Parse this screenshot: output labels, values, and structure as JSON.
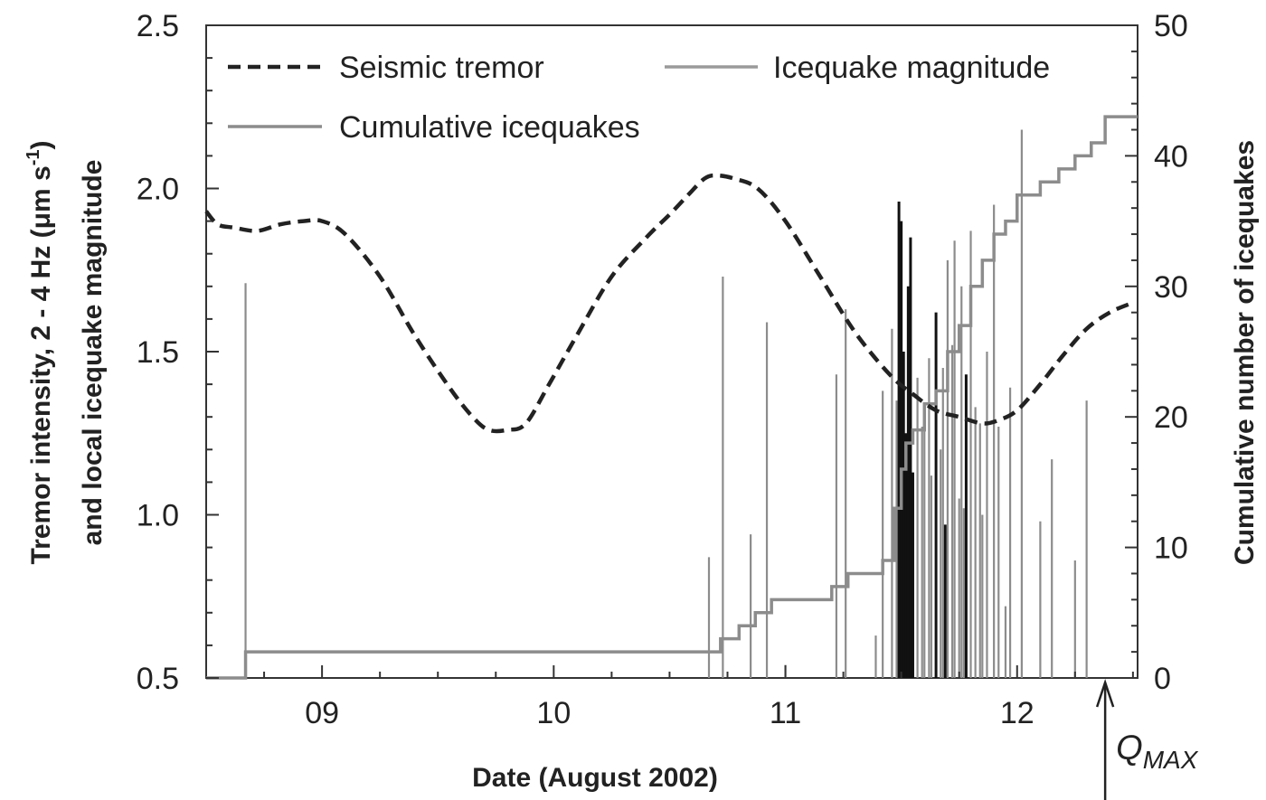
{
  "chart_data": {
    "type": "line",
    "xlabel": "Date (August 2002)",
    "ylabel_left_line1": "Tremor intensity, 2 - 4 Hz (μm s",
    "ylabel_left_sup": "-1",
    "ylabel_left_line1_end": ")",
    "ylabel_left_line2": "and local icequake magnitude",
    "ylabel_right": "Cumulative number of icequakes",
    "xlim": [
      8.5,
      12.52
    ],
    "ylim_left": [
      0.5,
      2.5
    ],
    "ylim_right": [
      0,
      50
    ],
    "x_ticks": [
      {
        "value": 9,
        "label": "09"
      },
      {
        "value": 10,
        "label": "10"
      },
      {
        "value": 11,
        "label": "11"
      },
      {
        "value": 12,
        "label": "12"
      }
    ],
    "y_left_ticks": [
      {
        "value": 0.5,
        "label": "0.5"
      },
      {
        "value": 1.0,
        "label": "1.0"
      },
      {
        "value": 1.5,
        "label": "1.5"
      },
      {
        "value": 2.0,
        "label": "2.0"
      },
      {
        "value": 2.5,
        "label": "2.5"
      }
    ],
    "y_right_ticks": [
      {
        "value": 0,
        "label": "0"
      },
      {
        "value": 10,
        "label": "10"
      },
      {
        "value": 20,
        "label": "20"
      },
      {
        "value": 30,
        "label": "30"
      },
      {
        "value": 40,
        "label": "40"
      },
      {
        "value": 50,
        "label": "50"
      }
    ],
    "legend": [
      {
        "name": "Seismic tremor",
        "style": "dashed",
        "color": "#222222"
      },
      {
        "name": "Icequake magnitude",
        "style": "solid",
        "color": "#9a9a9a"
      },
      {
        "name": "Cumulative icequakes",
        "style": "solid",
        "color": "#8c8c8c"
      }
    ],
    "annotation": {
      "label_main": "Q",
      "label_sub": "MAX",
      "x": 12.38
    },
    "series": [
      {
        "name": "Seismic tremor",
        "axis": "left",
        "x": [
          8.5,
          8.55,
          8.62,
          8.72,
          8.82,
          8.92,
          9.0,
          9.1,
          9.25,
          9.4,
          9.55,
          9.65,
          9.72,
          9.8,
          9.88,
          9.98,
          10.1,
          10.25,
          10.4,
          10.5,
          10.58,
          10.65,
          10.7,
          10.78,
          10.88,
          11.0,
          11.15,
          11.3,
          11.45,
          11.55,
          11.65,
          11.75,
          11.85,
          11.92,
          12.0,
          12.1,
          12.2,
          12.3,
          12.4,
          12.5
        ],
        "y": [
          1.93,
          1.89,
          1.88,
          1.87,
          1.89,
          1.9,
          1.9,
          1.86,
          1.73,
          1.55,
          1.39,
          1.3,
          1.26,
          1.26,
          1.28,
          1.4,
          1.55,
          1.73,
          1.85,
          1.92,
          1.98,
          2.03,
          2.04,
          2.03,
          2.0,
          1.9,
          1.73,
          1.56,
          1.43,
          1.37,
          1.32,
          1.3,
          1.28,
          1.29,
          1.32,
          1.4,
          1.49,
          1.57,
          1.62,
          1.65
        ]
      },
      {
        "name": "Icequake magnitude",
        "axis": "left",
        "x": [
          8.67,
          10.67,
          10.73,
          10.85,
          10.92,
          11.0,
          11.22,
          11.26,
          11.39,
          11.42,
          11.46,
          11.48,
          11.49,
          11.5,
          11.51,
          11.52,
          11.53,
          11.54,
          11.55,
          11.57,
          11.59,
          11.6,
          11.62,
          11.63,
          11.65,
          11.67,
          11.68,
          11.69,
          11.7,
          11.72,
          11.73,
          11.75,
          11.76,
          11.77,
          11.78,
          11.8,
          11.82,
          11.84,
          11.85,
          11.87,
          11.9,
          11.92,
          11.95,
          11.97,
          12.02,
          12.1,
          12.15,
          12.25,
          12.3
        ],
        "y": [
          1.71,
          0.87,
          1.73,
          0.94,
          1.59,
          0.54,
          1.43,
          1.63,
          0.63,
          1.38,
          1.57,
          1.35,
          1.96,
          1.9,
          1.5,
          1.25,
          1.7,
          1.85,
          1.13,
          1.42,
          1.27,
          1.32,
          1.48,
          1.12,
          1.62,
          1.2,
          1.45,
          0.97,
          1.78,
          1.52,
          1.84,
          1.05,
          1.7,
          1.02,
          1.43,
          1.87,
          1.33,
          1.28,
          1.0,
          1.5,
          1.95,
          1.27,
          0.72,
          1.39,
          2.18,
          0.98,
          1.17,
          0.86,
          1.35
        ]
      },
      {
        "name": "Cumulative icequakes",
        "axis": "right",
        "x": [
          8.5,
          8.67,
          10.67,
          10.72,
          10.8,
          10.87,
          10.94,
          11.2,
          11.27,
          11.42,
          11.47,
          11.5,
          11.52,
          11.55,
          11.6,
          11.65,
          11.7,
          11.75,
          11.8,
          11.85,
          11.9,
          11.95,
          12.0,
          12.1,
          12.18,
          12.25,
          12.32,
          12.38,
          12.52
        ],
        "y": [
          0,
          2,
          2,
          3,
          4,
          5,
          6,
          7,
          8,
          9,
          13,
          16,
          18,
          19,
          21,
          22,
          25,
          27,
          30,
          32,
          34,
          35,
          37,
          38,
          39,
          40,
          41,
          43,
          43
        ]
      }
    ]
  }
}
